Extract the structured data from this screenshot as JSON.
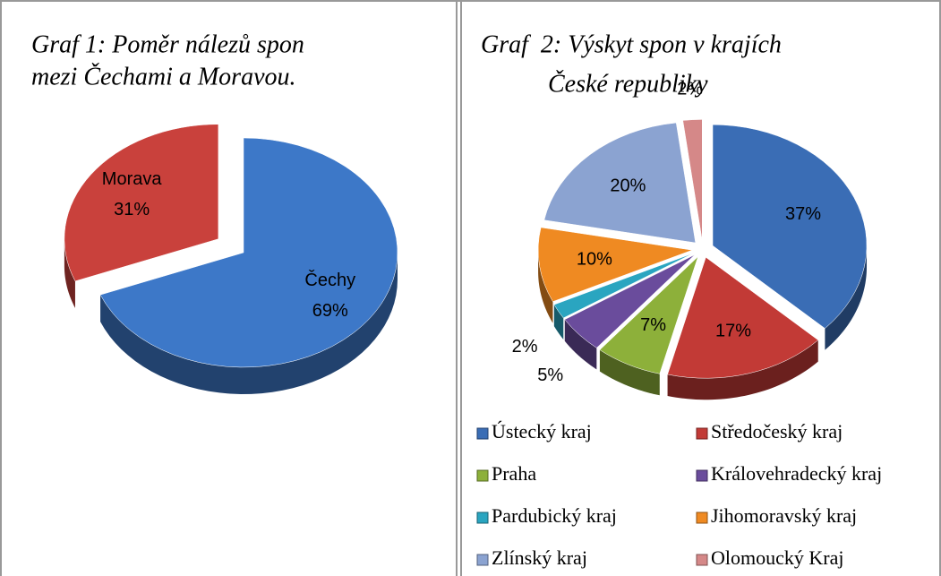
{
  "chart_data": [
    {
      "type": "pie",
      "title": [
        "Graf 1: Poměr nálezů spon",
        "mezi Čechami a Moravou."
      ],
      "categories": [
        "Čechy",
        "Morava"
      ],
      "values": [
        69,
        31
      ],
      "value_labels": [
        "69%",
        "31%"
      ],
      "colors": [
        "#3d78c8",
        "#c9413c"
      ]
    },
    {
      "type": "pie",
      "title": [
        "Graf  2: Výskyt spon v krajích",
        "České republiky"
      ],
      "categories": [
        "Ústecký kraj",
        "Středočeský kraj",
        "Praha",
        "Královehradecký kraj",
        "Pardubický kraj",
        "Jihomoravský kraj",
        "Zlínský kraj",
        "Olomoucký Kraj"
      ],
      "values": [
        37,
        17,
        7,
        5,
        2,
        10,
        20,
        2
      ],
      "value_labels": [
        "37%",
        "17%",
        "7%",
        "5%",
        "2%",
        "10%",
        "20%",
        "2%"
      ],
      "colors": [
        "#3a6db5",
        "#c23a36",
        "#8db03a",
        "#6a4c9c",
        "#2aa5c0",
        "#ef8a22",
        "#8ba3d1",
        "#d58888"
      ],
      "legend": "bottom"
    }
  ]
}
